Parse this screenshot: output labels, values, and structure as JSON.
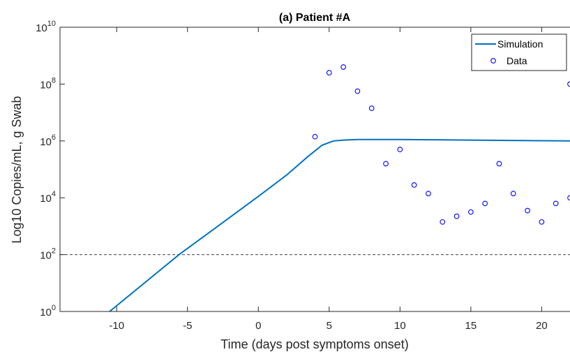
{
  "chart_data": {
    "type": "line",
    "title": "(a) Patient #A",
    "xlabel": "Time (days post symptoms onset)",
    "ylabel": "Log10 Copies/mL, g Swab",
    "xlim": [
      -14,
      22
    ],
    "ylim_log10": [
      0,
      10
    ],
    "y_scale": "log",
    "x_ticks": [
      -10,
      -5,
      0,
      5,
      10,
      15,
      20
    ],
    "x_tick_labels": [
      "-10",
      "-5",
      "0",
      "5",
      "10",
      "15",
      "20"
    ],
    "y_ticks_log10": [
      0,
      2,
      4,
      6,
      8,
      10
    ],
    "y_tick_base": "10",
    "y_tick_exponents": [
      "0",
      "2",
      "4",
      "6",
      "8",
      "10"
    ],
    "threshold": {
      "log10_value": 2,
      "style": "dashed",
      "color": "#404040"
    },
    "legend": {
      "position": "top-right",
      "entries": [
        "Simulation",
        "Data"
      ]
    },
    "series": [
      {
        "name": "Simulation",
        "kind": "line",
        "color": "#0072bd",
        "x": [
          -10.5,
          -5.6,
          -3,
          0,
          2,
          3.5,
          4.5,
          5.3,
          6,
          7,
          10,
          15,
          22
        ],
        "log10_y": [
          0,
          2,
          2.95,
          4.05,
          4.8,
          5.45,
          5.85,
          6.0,
          6.03,
          6.05,
          6.05,
          6.03,
          6.0
        ]
      },
      {
        "name": "Data",
        "kind": "scatter",
        "color": "#0000ff",
        "marker": "circle-open",
        "x": [
          4,
          5,
          6,
          7,
          8,
          9,
          10,
          11,
          12,
          13,
          14,
          15,
          16,
          17,
          18,
          19,
          20,
          21,
          22,
          22
        ],
        "log10_y": [
          6.15,
          8.4,
          8.6,
          7.75,
          7.15,
          5.2,
          5.7,
          4.45,
          4.15,
          3.15,
          3.35,
          3.5,
          3.8,
          5.2,
          4.15,
          3.55,
          3.15,
          3.8,
          4.0,
          8.0
        ]
      }
    ]
  }
}
